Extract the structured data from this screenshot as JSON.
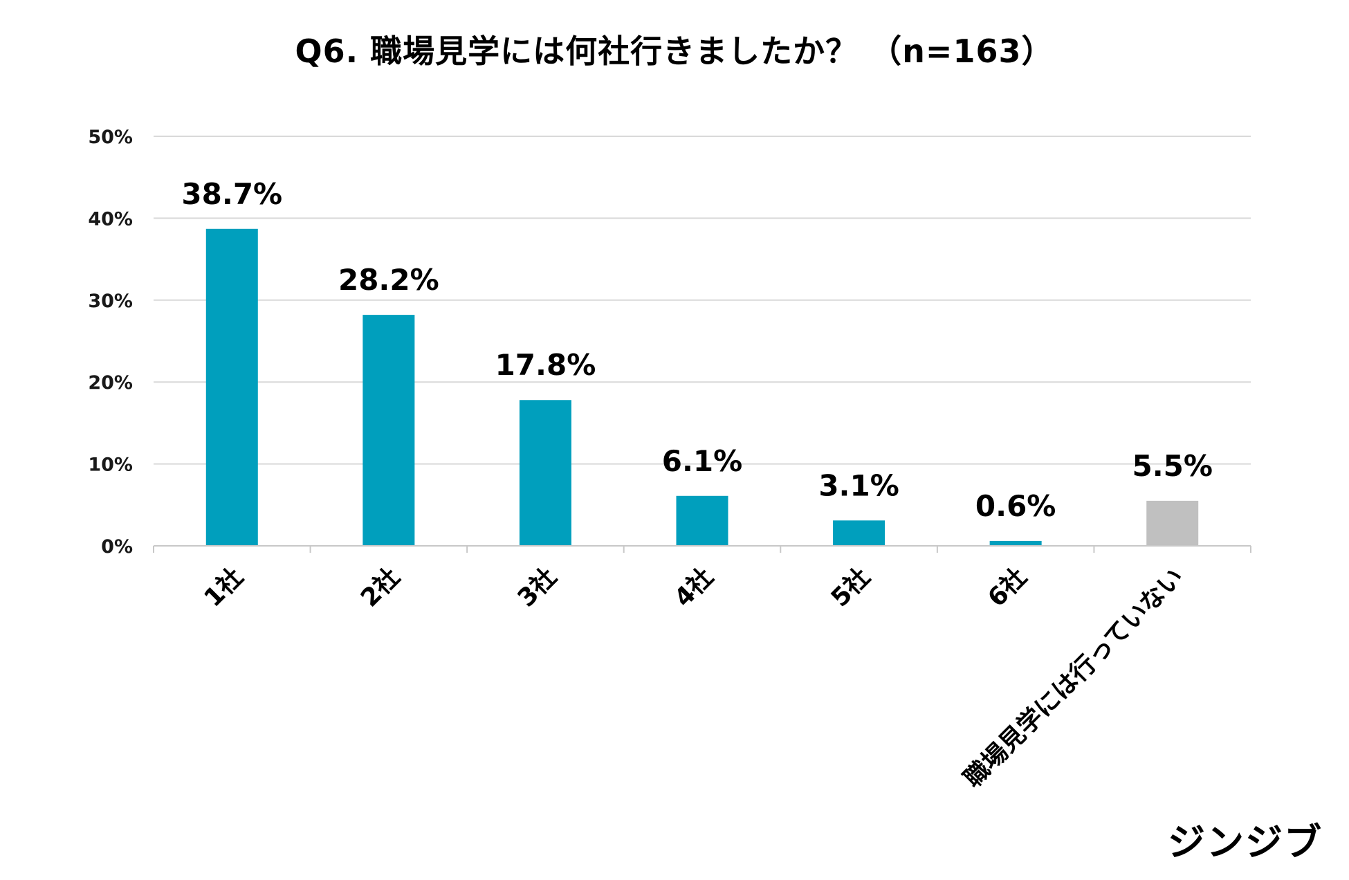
{
  "chart_data": {
    "type": "bar",
    "title": "Q6. 職場見学には何社行きましたか？ （n=163）",
    "xlabel": "",
    "ylabel": "",
    "categories": [
      "1社",
      "2社",
      "3社",
      "4社",
      "5社",
      "6社",
      "職場見学には行っていない"
    ],
    "values": [
      38.7,
      28.2,
      17.8,
      6.1,
      3.1,
      0.6,
      5.5
    ],
    "value_labels": [
      "38.7%",
      "28.2%",
      "17.8%",
      "6.1%",
      "3.1%",
      "0.6%",
      "5.5%"
    ],
    "ylim": [
      0,
      50
    ],
    "yticks": [
      0,
      10,
      20,
      30,
      40,
      50
    ],
    "ytick_labels": [
      "0%",
      "10%",
      "20%",
      "30%",
      "40%",
      "50%"
    ],
    "grid": true,
    "legend": "none",
    "colors": {
      "bar": "#009fbd",
      "highlight_bar": "#c0c0c0",
      "grid": "#d9d9d9",
      "axis": "#c8c8c8"
    },
    "bar_colors": [
      "#009fbd",
      "#009fbd",
      "#009fbd",
      "#009fbd",
      "#009fbd",
      "#009fbd",
      "#c0c0c0"
    ]
  },
  "logo": {
    "text": "ジンジブ"
  }
}
